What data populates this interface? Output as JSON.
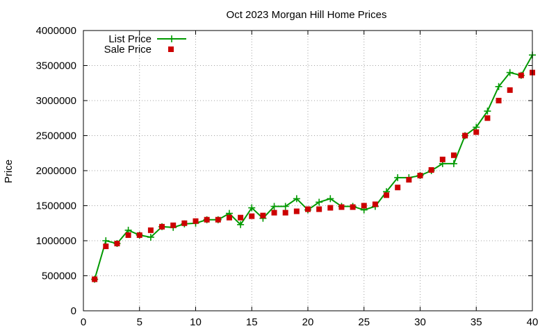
{
  "chart_data": {
    "type": "line",
    "title": "Oct 2023 Morgan Hill Home Prices",
    "xlabel": "",
    "ylabel": "Price",
    "xlim": [
      0,
      40
    ],
    "ylim": [
      0,
      4000000
    ],
    "xticks": [
      "0",
      "5",
      "10",
      "15",
      "20",
      "25",
      "30",
      "35",
      "40"
    ],
    "yticks": [
      "0",
      "500000",
      "1000000",
      "1500000",
      "2000000",
      "2500000",
      "3000000",
      "3500000",
      "4000000"
    ],
    "grid": true,
    "legend_position": "top-left",
    "x": [
      1,
      2,
      3,
      4,
      5,
      6,
      7,
      8,
      9,
      10,
      11,
      12,
      13,
      14,
      15,
      16,
      17,
      18,
      19,
      20,
      21,
      22,
      23,
      24,
      25,
      26,
      27,
      28,
      29,
      30,
      31,
      32,
      33,
      34,
      35,
      36,
      37,
      38,
      39,
      40
    ],
    "series": [
      {
        "name": "List Price",
        "style": "line-plus",
        "color": "#009900",
        "values": [
          450000,
          1000000,
          960000,
          1150000,
          1080000,
          1050000,
          1200000,
          1190000,
          1240000,
          1250000,
          1300000,
          1300000,
          1390000,
          1230000,
          1470000,
          1320000,
          1490000,
          1490000,
          1600000,
          1440000,
          1550000,
          1600000,
          1490000,
          1490000,
          1440000,
          1490000,
          1700000,
          1900000,
          1900000,
          1930000,
          2000000,
          2100000,
          2100000,
          2500000,
          2620000,
          2850000,
          3200000,
          3400000,
          3360000,
          3650000
        ]
      },
      {
        "name": "Sale Price",
        "style": "square-points",
        "color": "#cc0000",
        "values": [
          450000,
          920000,
          960000,
          1080000,
          1080000,
          1150000,
          1200000,
          1220000,
          1250000,
          1280000,
          1300000,
          1300000,
          1330000,
          1330000,
          1350000,
          1360000,
          1400000,
          1400000,
          1420000,
          1450000,
          1450000,
          1470000,
          1480000,
          1480000,
          1500000,
          1520000,
          1650000,
          1760000,
          1870000,
          1930000,
          2010000,
          2160000,
          2220000,
          2500000,
          2550000,
          2750000,
          3000000,
          3150000,
          3360000,
          3400000
        ]
      }
    ]
  }
}
